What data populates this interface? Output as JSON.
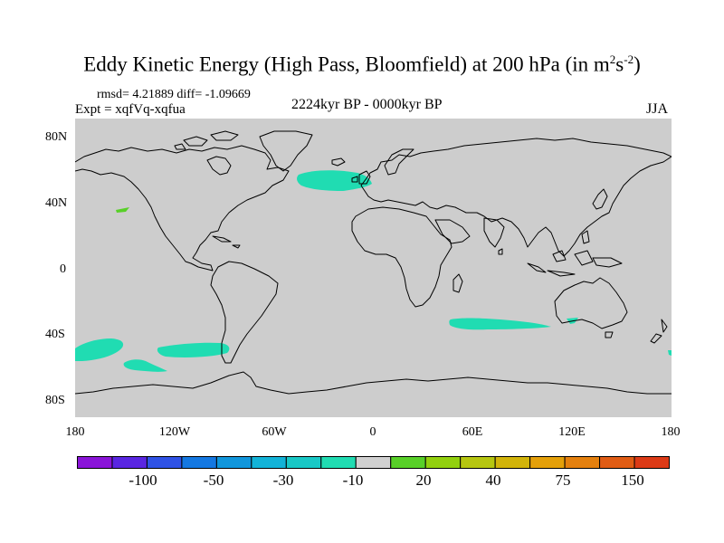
{
  "title": {
    "main": "Eddy Kinetic Energy (High Pass, Bloomfield) at 200 hPa (in m",
    "sup1": "2",
    "mid": "s",
    "sup2": "-2",
    "end": ")"
  },
  "stats": {
    "rmsd": "rmsd= 4.21889 diff= -1.09669",
    "expt": "Expt = xqfVq-xqfua"
  },
  "period": "2224kyr BP - 0000kyr BP",
  "season": "JJA",
  "lat_labels": [
    "80N",
    "40N",
    "0",
    "40S",
    "80S"
  ],
  "lon_labels": [
    "180",
    "120W",
    "60W",
    "0",
    "60E",
    "120E",
    "180"
  ],
  "colorbar": {
    "colors": [
      "#8a14d8",
      "#5a26e2",
      "#2f52e6",
      "#1478e2",
      "#1096dc",
      "#12b3d8",
      "#18c8c6",
      "#20dcb2",
      "#d0d0d0",
      "#58d028",
      "#92d00e",
      "#b6c610",
      "#d2b40a",
      "#e4a00a",
      "#e4800e",
      "#e05c14",
      "#dc3a16"
    ],
    "labels": [
      "-100",
      "-50",
      "-30",
      "-10",
      "20",
      "40",
      "75",
      "150"
    ]
  },
  "colors": {
    "ocean": "#cdcdcd",
    "anomaly": "#20dcb2",
    "green_patch": "#58d028"
  }
}
